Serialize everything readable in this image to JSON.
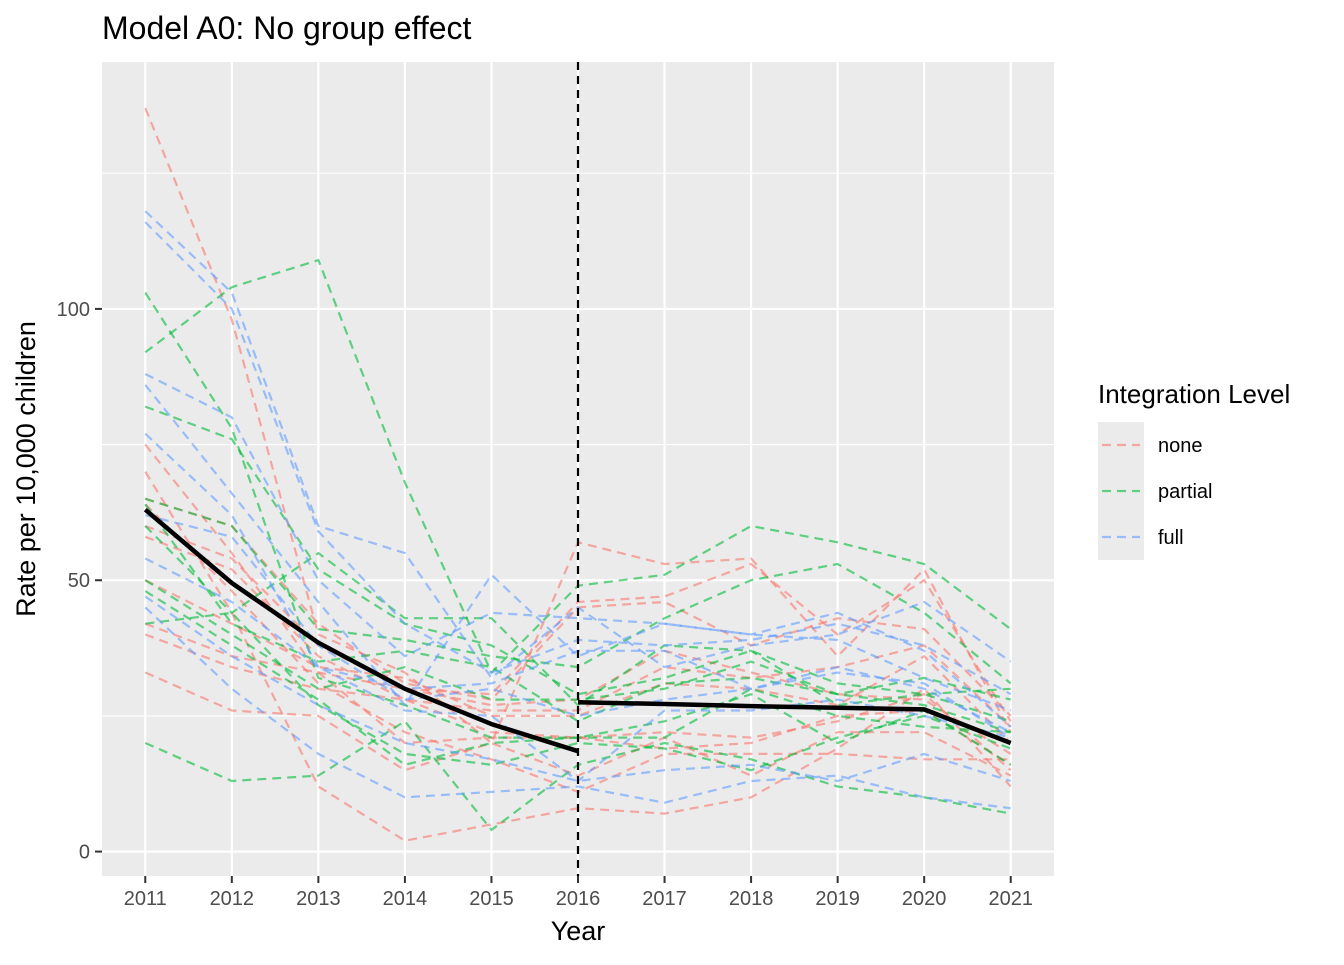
{
  "chart_data": {
    "type": "line",
    "title": "Model A0: No group effect",
    "xlabel": "Year",
    "ylabel": "Rate per 10,000 children",
    "x": [
      2011,
      2012,
      2013,
      2014,
      2015,
      2016,
      2017,
      2018,
      2019,
      2020,
      2021
    ],
    "xlim": [
      2010.5,
      2021.5
    ],
    "ylim": [
      -4.5,
      145.5
    ],
    "yticks": [
      0,
      50,
      100
    ],
    "intervention_year": 2016,
    "grid": true,
    "legend": {
      "title": "Integration Level",
      "position": "right",
      "entries": [
        {
          "name": "none",
          "color": "#F8766D"
        },
        {
          "name": "partial",
          "color": "#00BA38"
        },
        {
          "name": "full",
          "color": "#619CFF"
        }
      ]
    },
    "fit": {
      "color": "#000000",
      "pre": {
        "x": [
          2011,
          2012,
          2013,
          2014,
          2015,
          2016
        ],
        "values": [
          63,
          49.5,
          38.5,
          30,
          23.5,
          18.5
        ]
      },
      "post": {
        "x": [
          2016,
          2017,
          2018,
          2019,
          2020,
          2021
        ],
        "values": [
          27.5,
          27.2,
          26.8,
          26.5,
          26.2,
          20
        ]
      }
    },
    "series": [
      {
        "group": "none",
        "values": [
          137,
          98,
          40,
          33,
          20,
          57,
          53,
          54,
          36,
          52,
          22
        ]
      },
      {
        "group": "none",
        "values": [
          75,
          55,
          33,
          30,
          29,
          46,
          47,
          53,
          40,
          50,
          24
        ]
      },
      {
        "group": "none",
        "values": [
          65,
          60,
          42,
          31,
          28,
          45,
          46,
          38,
          43,
          41,
          25
        ]
      },
      {
        "group": "none",
        "values": [
          60,
          54,
          38,
          30,
          27,
          28,
          37,
          33,
          29,
          28,
          18
        ]
      },
      {
        "group": "none",
        "values": [
          58,
          52,
          36,
          28,
          26,
          26,
          34,
          32,
          34,
          38,
          23
        ]
      },
      {
        "group": "none",
        "values": [
          50,
          42,
          34,
          32,
          25,
          25,
          31,
          30,
          27,
          36,
          20
        ]
      },
      {
        "group": "none",
        "values": [
          42,
          36,
          33,
          20,
          21,
          21,
          22,
          21,
          24,
          29,
          15
        ]
      },
      {
        "group": "none",
        "values": [
          40,
          34,
          30,
          28,
          22,
          21,
          19,
          20,
          25,
          26,
          16
        ]
      },
      {
        "group": "none",
        "values": [
          33,
          26,
          25,
          15,
          20,
          14,
          21,
          14,
          22,
          22,
          14
        ]
      },
      {
        "group": "none",
        "values": [
          64,
          48,
          31,
          22,
          17,
          11,
          18,
          18,
          18,
          17,
          17
        ]
      },
      {
        "group": "none",
        "values": [
          70,
          44,
          12,
          2,
          5,
          8,
          7,
          10,
          19,
          30,
          12
        ]
      },
      {
        "group": "partial",
        "values": [
          103,
          78,
          32,
          27,
          21,
          21,
          21,
          30,
          25,
          23,
          22
        ]
      },
      {
        "group": "partial",
        "values": [
          92,
          104,
          109,
          68,
          33,
          49,
          51,
          60,
          57,
          53,
          41
        ]
      },
      {
        "group": "partial",
        "values": [
          82,
          76,
          52,
          42,
          38,
          29,
          32,
          37,
          31,
          29,
          24
        ]
      },
      {
        "group": "partial",
        "values": [
          65,
          60,
          41,
          39,
          36,
          34,
          43,
          50,
          53,
          44,
          31
        ]
      },
      {
        "group": "partial",
        "values": [
          60,
          44,
          55,
          43,
          43,
          27,
          38,
          37,
          27,
          29,
          30
        ]
      },
      {
        "group": "partial",
        "values": [
          64,
          42,
          35,
          37,
          34,
          24,
          31,
          32,
          29,
          27,
          22
        ]
      },
      {
        "group": "partial",
        "values": [
          50,
          40,
          30,
          34,
          28,
          28,
          30,
          35,
          29,
          32,
          28
        ]
      },
      {
        "group": "partial",
        "values": [
          48,
          38,
          28,
          16,
          20,
          21,
          24,
          29,
          20,
          26,
          16
        ]
      },
      {
        "group": "partial",
        "values": [
          42,
          44,
          27,
          18,
          16,
          20,
          19,
          15,
          21,
          25,
          19
        ]
      },
      {
        "group": "partial",
        "values": [
          20,
          13,
          14,
          24,
          4,
          16,
          20,
          17,
          12,
          10,
          7
        ]
      },
      {
        "group": "full",
        "values": [
          118,
          103,
          60,
          55,
          32,
          45,
          34,
          38,
          40,
          46,
          35
        ]
      },
      {
        "group": "full",
        "values": [
          116,
          100,
          59,
          42,
          33,
          39,
          38,
          39,
          42,
          38,
          29
        ]
      },
      {
        "group": "full",
        "values": [
          88,
          80,
          50,
          36,
          44,
          43,
          42,
          40,
          44,
          37,
          23
        ]
      },
      {
        "group": "full",
        "values": [
          86,
          66,
          46,
          27,
          51,
          36,
          42,
          40,
          39,
          32,
          26
        ]
      },
      {
        "group": "full",
        "values": [
          77,
          62,
          34,
          30,
          31,
          37,
          37,
          30,
          33,
          31,
          21
        ]
      },
      {
        "group": "full",
        "values": [
          62,
          58,
          38,
          28,
          30,
          25,
          28,
          30,
          34,
          30,
          22
        ]
      },
      {
        "group": "full",
        "values": [
          54,
          46,
          34,
          26,
          25,
          13,
          26,
          26,
          28,
          25,
          21
        ]
      },
      {
        "group": "full",
        "values": [
          47,
          36,
          27,
          20,
          17,
          13,
          15,
          16,
          13,
          18,
          13
        ]
      },
      {
        "group": "full",
        "values": [
          45,
          30,
          18,
          10,
          11,
          12,
          9,
          13,
          14,
          10,
          8
        ]
      }
    ]
  }
}
